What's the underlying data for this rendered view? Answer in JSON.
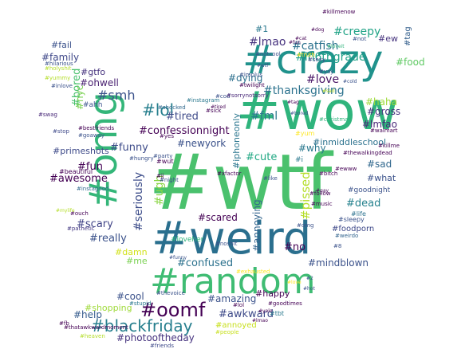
{
  "title": "",
  "colors": {
    "background": "#ffffff",
    "palette": [
      "#440154",
      "#46327e",
      "#365c8d",
      "#277f8e",
      "#1fa187",
      "#4ac16d",
      "#a0da39",
      "#fde725"
    ]
  },
  "words": [
    {
      "text": "#wtf",
      "color": "#4ac16d"
    },
    {
      "text": "#weird",
      "color": "#2a6f8e"
    },
    {
      "text": "#wow",
      "color": "#2fb47c"
    },
    {
      "text": "#crazy",
      "color": "#20928c"
    },
    {
      "text": "#random",
      "color": "#3fbc73"
    },
    {
      "text": "#omg",
      "color": "#34b679"
    },
    {
      "text": "#oomf",
      "color": "#440154"
    },
    {
      "text": "#blackfriday",
      "color": "#277f8e"
    },
    {
      "text": "#lol",
      "color": "#277f8e"
    },
    {
      "text": "#smh",
      "color": "#3b528b"
    },
    {
      "text": "#lmao",
      "color": "#46327e"
    },
    {
      "text": "#catfish",
      "color": "#2c728e"
    },
    {
      "text": "#creepy",
      "color": "#20a386"
    },
    {
      "text": "#in6thgrade",
      "color": "#1fa188"
    },
    {
      "text": "#love",
      "color": "#471365"
    },
    {
      "text": "#thanksgiving",
      "color": "#2c728e"
    },
    {
      "text": "#dying",
      "color": "#2d708e"
    },
    {
      "text": "#fml",
      "color": "#2a788e"
    },
    {
      "text": "#haha",
      "color": "#9fda3a"
    },
    {
      "text": "#gross",
      "color": "#46337f"
    },
    {
      "text": "#lmfao",
      "color": "#482878"
    },
    {
      "text": "#confessionnight",
      "color": "#440154"
    },
    {
      "text": "#tired",
      "color": "#3e4a89"
    },
    {
      "text": "#ohwell",
      "color": "#481f70"
    },
    {
      "text": "#bored",
      "color": "#4ac16d"
    },
    {
      "text": "#nyc",
      "color": "#7ad151"
    },
    {
      "text": "#family",
      "color": "#3f4889"
    },
    {
      "text": "#gtfo",
      "color": "#46327e"
    },
    {
      "text": "#fail",
      "color": "#3b528b"
    },
    {
      "text": "#food",
      "color": "#5ec962"
    },
    {
      "text": "#ew",
      "color": "#46337e"
    },
    {
      "text": "#tag",
      "color": "#35608d"
    },
    {
      "text": "#funny",
      "color": "#3e4c8a"
    },
    {
      "text": "#newyork",
      "color": "#3b528b"
    },
    {
      "text": "#why",
      "color": "#2a788e"
    },
    {
      "text": "#cute",
      "color": "#22a884"
    },
    {
      "text": "#sad",
      "color": "#31688e"
    },
    {
      "text": "#inmiddleschool",
      "color": "#2c728e"
    },
    {
      "text": "#fun",
      "color": "#440154"
    },
    {
      "text": "#awesome",
      "color": "#440154"
    },
    {
      "text": "#primeshots",
      "color": "#3e4a89"
    },
    {
      "text": "#seriously",
      "color": "#3d4d8a"
    },
    {
      "text": "#ugh",
      "color": "#8bd646"
    },
    {
      "text": "#iphoneonly",
      "color": "#2a768e"
    },
    {
      "text": "#pissed",
      "color": "#b5de2b"
    },
    {
      "text": "#what",
      "color": "#3b528b"
    },
    {
      "text": "#dead",
      "color": "#26828e"
    },
    {
      "text": "#scary",
      "color": "#414487"
    },
    {
      "text": "#really",
      "color": "#3b528b"
    },
    {
      "text": "#scared",
      "color": "#440154"
    },
    {
      "text": "#annoying",
      "color": "#32648e"
    },
    {
      "text": "#damn",
      "color": "#d2e21b"
    },
    {
      "text": "#me",
      "color": "#7ad151"
    },
    {
      "text": "#confused",
      "color": "#2c728e"
    },
    {
      "text": "#no",
      "color": "#440154"
    },
    {
      "text": "#mindblown",
      "color": "#3b528b"
    },
    {
      "text": "#foodporn",
      "color": "#3e4989"
    },
    {
      "text": "#cool",
      "color": "#3b528b"
    },
    {
      "text": "#amazing",
      "color": "#3b528b"
    },
    {
      "text": "#happy",
      "color": "#440154"
    },
    {
      "text": "#awkward",
      "color": "#3e4a89"
    },
    {
      "text": "#help",
      "color": "#365c8d"
    },
    {
      "text": "#shopping",
      "color": "#9fda3a"
    },
    {
      "text": "#photooftheday",
      "color": "#46337f"
    },
    {
      "text": "#annoyed",
      "color": "#c8e020"
    },
    {
      "text": "#goodnight",
      "color": "#3b528b"
    },
    {
      "text": "#ahh",
      "color": "#3b528b"
    },
    {
      "text": "#1",
      "color": "#2a788e"
    },
    {
      "text": "#i",
      "color": "#2a788e"
    },
    {
      "text": "#loveher",
      "color": "#2fb47c"
    },
    {
      "text": "#xfactor",
      "color": "#440154"
    },
    {
      "text": "#beautiful",
      "color": "#440154"
    },
    {
      "text": "#instagood",
      "color": "#31688e"
    },
    {
      "text": "#swag",
      "color": "#482878"
    },
    {
      "text": "#bestfriends",
      "color": "#440154"
    },
    {
      "text": "#goaway",
      "color": "#3b528b"
    },
    {
      "text": "#ouch",
      "color": "#440154"
    },
    {
      "text": "#pathetic",
      "color": "#443983"
    },
    {
      "text": "#life",
      "color": "#2c728e"
    },
    {
      "text": "#sleepy",
      "color": "#3b528b"
    },
    {
      "text": "#weirdo",
      "color": "#32648e"
    },
    {
      "text": "#music",
      "color": "#440154"
    },
    {
      "text": "#exhausted",
      "color": "#fde725"
    },
    {
      "text": "#thevoice",
      "color": "#3b528b"
    },
    {
      "text": "#stupid",
      "color": "#2a788e"
    },
    {
      "text": "#goodtimes",
      "color": "#440154"
    },
    {
      "text": "#people",
      "color": "#c8e020"
    },
    {
      "text": "#heaven",
      "color": "#b5de2b"
    },
    {
      "text": "#friends",
      "color": "#3e4989"
    },
    {
      "text": "#thatawkwardmoment",
      "color": "#440154"
    },
    {
      "text": "#fb",
      "color": "#440154"
    },
    {
      "text": "#cod",
      "color": "#3b528b"
    },
    {
      "text": "#instagram",
      "color": "#2a788e"
    },
    {
      "text": "#shocked",
      "color": "#31688e"
    },
    {
      "text": "#sick",
      "color": "#440154"
    },
    {
      "text": "#yes",
      "color": "#440154"
    },
    {
      "text": "#like",
      "color": "#3b528b"
    },
    {
      "text": "#killme",
      "color": "#440154"
    },
    {
      "text": "#walmart",
      "color": "#440154"
    },
    {
      "text": "#christmas",
      "color": "#2fb47c"
    },
    {
      "text": "#truth",
      "color": "#fde725"
    },
    {
      "text": "#sexy",
      "color": "#3e4989"
    },
    {
      "text": "#yay",
      "color": "#3b528b"
    },
    {
      "text": "#implus",
      "color": "#3b528b"
    },
    {
      "text": "#twilight",
      "color": "#440154"
    },
    {
      "text": "#sorrynotsorry",
      "color": "#482878"
    },
    {
      "text": "#notcool",
      "color": "#3b528b"
    },
    {
      "text": "#not",
      "color": "#3b528b"
    },
    {
      "text": "#killmenow",
      "color": "#440154"
    },
    {
      "text": "#bitch",
      "color": "#440154"
    },
    {
      "text": "#yum",
      "color": "#fde725"
    },
    {
      "text": "#thewalkingdead",
      "color": "#440154"
    },
    {
      "text": "#ewww",
      "color": "#440154"
    },
    {
      "text": "#wut",
      "color": "#440154"
    },
    {
      "text": "#jj",
      "color": "#440154"
    },
    {
      "text": "#party",
      "color": "#3b528b"
    },
    {
      "text": "#stop",
      "color": "#3e4989"
    },
    {
      "text": "#holyshit",
      "color": "#b5de2b"
    },
    {
      "text": "#yummy",
      "color": "#b5de2b"
    },
    {
      "text": "#hilarious",
      "color": "#3b528b"
    },
    {
      "text": "#inlove",
      "color": "#3b528b"
    },
    {
      "text": "#night",
      "color": "#3b528b"
    },
    {
      "text": "#hungry",
      "color": "#3b528b"
    },
    {
      "text": "#tbt",
      "color": "#2a788e"
    },
    {
      "text": "#funny",
      "color": "#3b528b"
    },
    {
      "text": "#2",
      "color": "#3b528b"
    },
    {
      "text": "#8",
      "color": "#3b528b"
    },
    {
      "text": "#gay",
      "color": "#440154"
    },
    {
      "text": "#mylife",
      "color": "#b5de2b"
    },
    {
      "text": "#tired",
      "color": "#440154"
    },
    {
      "text": "#bored",
      "color": "#3b528b"
    },
    {
      "text": "#wtf",
      "color": "#3b528b"
    },
    {
      "text": "#lol",
      "color": "#440154"
    },
    {
      "text": "#omg",
      "color": "#3b528b"
    },
    {
      "text": "#follow",
      "color": "#440154"
    },
    {
      "text": "#noshit",
      "color": "#3b528b"
    },
    {
      "text": "#loveit",
      "color": "#2fb47c"
    },
    {
      "text": "#fun",
      "color": "#440154"
    },
    {
      "text": "#cat",
      "color": "#440154"
    },
    {
      "text": "#dog",
      "color": "#440154"
    },
    {
      "text": "#tag",
      "color": "#440154"
    },
    {
      "text": "#lmao",
      "color": "#440154"
    },
    {
      "text": "#yolo",
      "color": "#440154"
    },
    {
      "text": "#cold",
      "color": "#3b528b"
    },
    {
      "text": "#hot",
      "color": "#3b528b"
    },
    {
      "text": "#love",
      "color": "#fde725"
    },
    {
      "text": "#sad",
      "color": "#b5de2b"
    },
    {
      "text": "#hahaha",
      "color": "#440154"
    },
    {
      "text": "#ew",
      "color": "#b5de2b"
    }
  ]
}
